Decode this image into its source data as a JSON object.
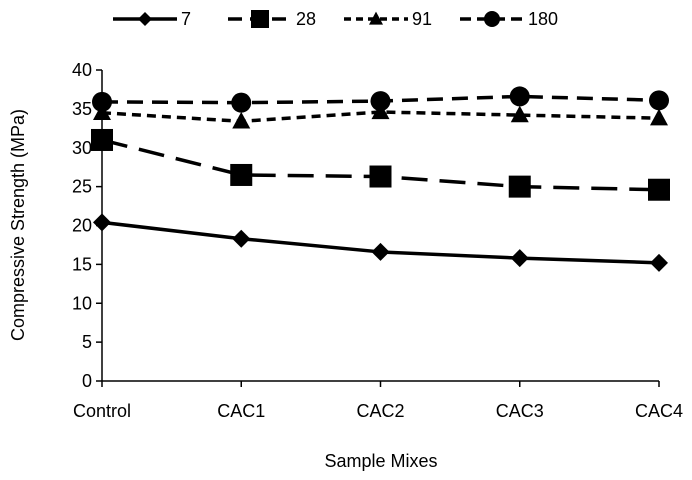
{
  "chart_data": {
    "type": "line",
    "title": "",
    "xlabel": "Sample Mixes",
    "ylabel": "Compressive Strength (MPa)",
    "ylim": [
      0,
      40
    ],
    "yticks": [
      0,
      5,
      10,
      15,
      20,
      25,
      30,
      35,
      40
    ],
    "categories": [
      "Control",
      "CAC1",
      "CAC2",
      "CAC3",
      "CAC4"
    ],
    "grid": false,
    "legend_position": "top",
    "series": [
      {
        "name": "7",
        "marker": "diamond",
        "dash": "solid",
        "color": "#000000",
        "values": [
          20.4,
          18.3,
          16.6,
          15.8,
          15.2
        ]
      },
      {
        "name": "28",
        "marker": "square",
        "dash": "long-dash",
        "color": "#000000",
        "values": [
          31.0,
          26.5,
          26.3,
          25.0,
          24.6
        ]
      },
      {
        "name": "91",
        "marker": "triangle",
        "dash": "short-dash",
        "color": "#000000",
        "values": [
          34.5,
          33.4,
          34.6,
          34.2,
          33.8
        ]
      },
      {
        "name": "180",
        "marker": "circle",
        "dash": "dash",
        "color": "#000000",
        "values": [
          35.9,
          35.8,
          36.0,
          36.6,
          36.1
        ]
      }
    ]
  }
}
